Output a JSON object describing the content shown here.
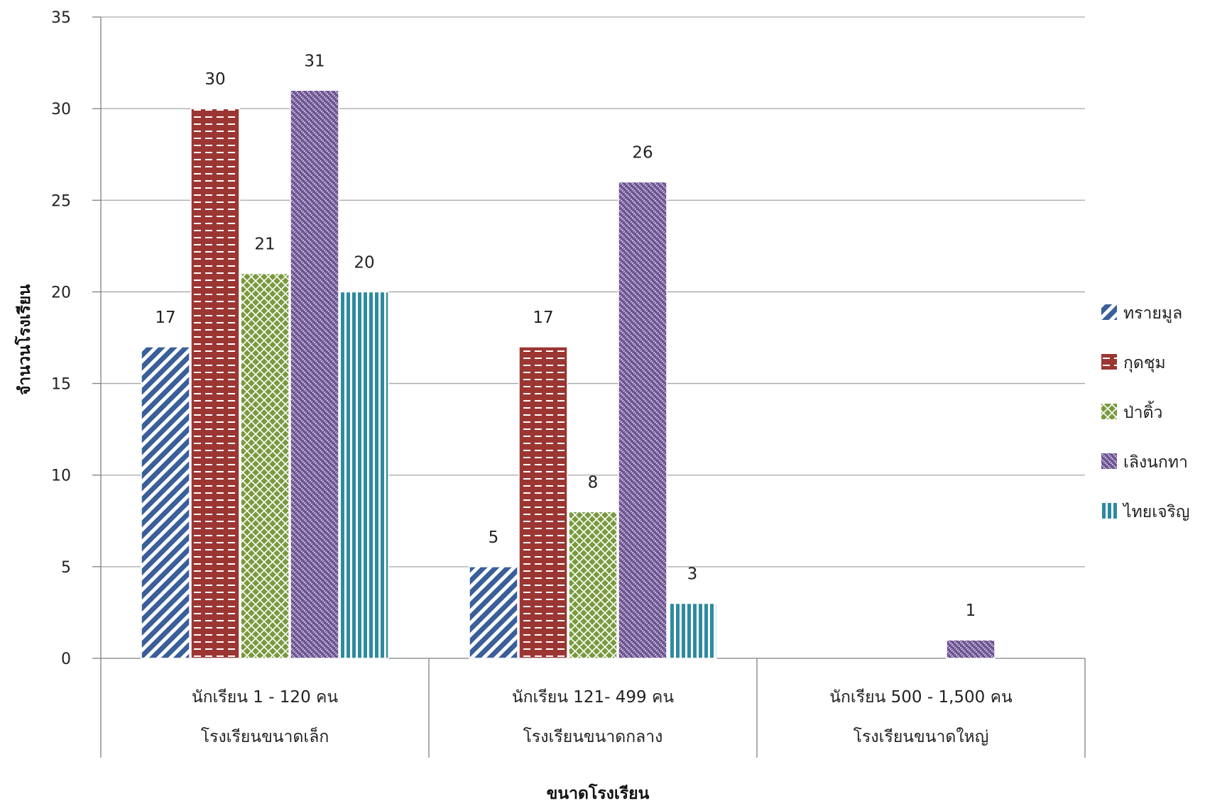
{
  "chart_data": {
    "type": "bar",
    "title": "",
    "xlabel": "ขนาดโรงเรียน",
    "ylabel": "จำนวนโรงเรียน",
    "ylim": [
      0,
      35
    ],
    "yticks": [
      0,
      5,
      10,
      15,
      20,
      25,
      30,
      35
    ],
    "grid": true,
    "legend_position": "right",
    "categories": [
      {
        "line1": "นักเรียน  1  - 120  คน",
        "line2": "โรงเรียนขนาดเล็ก"
      },
      {
        "line1": "นักเรียน 121- 499  คน",
        "line2": "โรงเรียนขนาดกลาง"
      },
      {
        "line1": "นักเรียน  500 - 1,500 คน",
        "line2": "โรงเรียนขนาดใหญ่"
      }
    ],
    "series": [
      {
        "name": "ทรายมูล",
        "color": "#3a5f9a",
        "pattern": "diagonal",
        "values": [
          17,
          5,
          null
        ]
      },
      {
        "name": "กุดชุม",
        "color": "#9b3633",
        "pattern": "dashes",
        "values": [
          30,
          17,
          null
        ]
      },
      {
        "name": "ป่าติ้ว",
        "color": "#7a9a3f",
        "pattern": "crosshatch",
        "values": [
          21,
          8,
          null
        ]
      },
      {
        "name": "เลิงนกทา",
        "color": "#6a5190",
        "pattern": "weave",
        "values": [
          31,
          26,
          1
        ]
      },
      {
        "name": "ไทยเจริญ",
        "color": "#2e8aa0",
        "pattern": "vertical",
        "values": [
          20,
          3,
          null
        ]
      }
    ]
  }
}
